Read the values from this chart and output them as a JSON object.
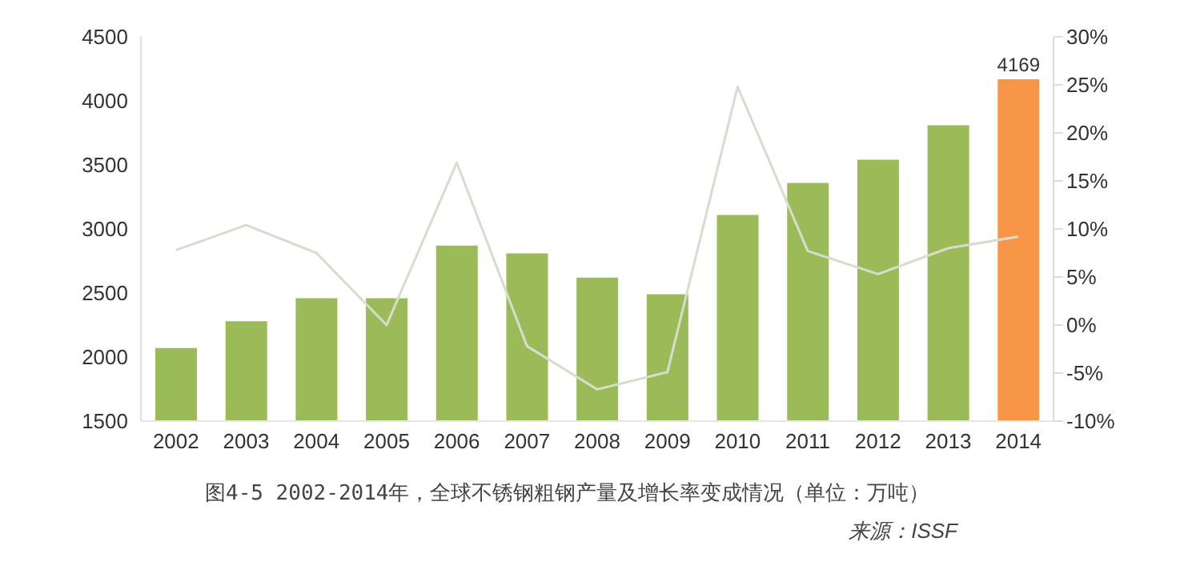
{
  "chart_data": {
    "type": "bar",
    "title": "图4-5 2002-2014年，全球不锈钢粗钢产量及增长率变成情况（单位：万吨）",
    "annotations": [
      "来源：ISSF"
    ],
    "categories": [
      "2002",
      "2003",
      "2004",
      "2005",
      "2006",
      "2007",
      "2008",
      "2009",
      "2010",
      "2011",
      "2012",
      "2013",
      "2014"
    ],
    "series": [
      {
        "colors": [
          "#9bbb59",
          "#9bbb59",
          "#9bbb59",
          "#9bbb59",
          "#9bbb59",
          "#9bbb59",
          "#9bbb59",
          "#9bbb59",
          "#9bbb59",
          "#9bbb59",
          "#9bbb59",
          "#9bbb59",
          "#f79646"
        ],
        "values": [
          2070,
          2280,
          2460,
          2460,
          2870,
          2810,
          2620,
          2490,
          3110,
          3360,
          3540,
          3810,
          4169
        ],
        "value_labels": [
          null,
          null,
          null,
          null,
          null,
          null,
          null,
          null,
          null,
          null,
          null,
          null,
          "4169"
        ]
      },
      {
        "type": "line",
        "axis": "y2",
        "color": "#d8dccf",
        "values": [
          7.8,
          10.4,
          7.5,
          0,
          16.9,
          -2.2,
          -6.7,
          -4.9,
          24.8,
          7.7,
          5.3,
          8.0,
          9.2
        ]
      }
    ],
    "ylim": [
      1500,
      4500
    ],
    "yticks": [
      1500,
      2000,
      2500,
      3000,
      3500,
      4000,
      4500
    ],
    "y2lim": [
      -10,
      30
    ],
    "y2ticks": [
      {
        "value": -10,
        "label": "-10%"
      },
      {
        "value": -5,
        "label": "-5%"
      },
      {
        "value": 0,
        "label": "0%"
      },
      {
        "value": 5,
        "label": "5%"
      },
      {
        "value": 10,
        "label": "10%"
      },
      {
        "value": 15,
        "label": "15%"
      },
      {
        "value": 20,
        "label": "20%"
      },
      {
        "value": 25,
        "label": "25%"
      },
      {
        "value": 30,
        "label": "30%"
      }
    ],
    "grid": false,
    "legend": false,
    "marker": "none",
    "line_style": "solid"
  }
}
